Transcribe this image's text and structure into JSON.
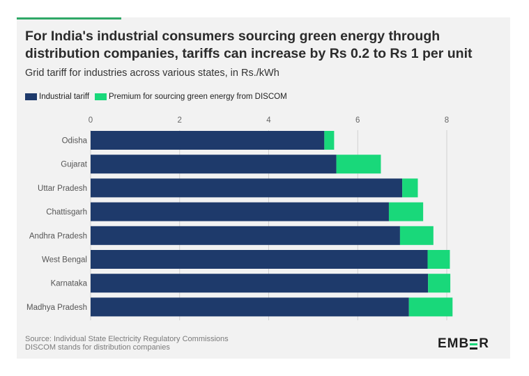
{
  "title": "For India's industrial consumers sourcing green energy through distribution companies, tariffs can increase by Rs 0.2 to Rs 1 per unit",
  "subtitle": "Grid tariff for industries across various states, in Rs./kWh",
  "legend": {
    "industrial": "Industrial tariff",
    "premium": "Premium for sourcing green energy from DISCOM"
  },
  "source": {
    "line1": "Source: Individual State Electricity Regulatory Commissions",
    "line2": "DISCOM stands for distribution companies"
  },
  "logo": {
    "pre": "EMB",
    "post": "R"
  },
  "colors": {
    "industrial": "#1e3a6b",
    "premium": "#19d87a",
    "grid": "#d0d0d0"
  },
  "chart_data": {
    "type": "bar",
    "orientation": "horizontal",
    "stacked": true,
    "title": "For India's industrial consumers sourcing green energy through distribution companies, tariffs can increase by Rs 0.2 to Rs 1 per unit",
    "subtitle": "Grid tariff for industries across various states, in Rs./kWh",
    "xlabel": "",
    "ylabel": "",
    "xlim": [
      0,
      8
    ],
    "xticks": [
      0,
      2,
      4,
      6,
      8
    ],
    "grid": true,
    "legend_position": "top-left",
    "categories": [
      "Odisha",
      "Gujarat",
      "Uttar Pradesh",
      "Chattisgarh",
      "Andhra Pradesh",
      "West Bengal",
      "Karnataka",
      "Madhya Pradesh"
    ],
    "series": [
      {
        "name": "Industrial tariff",
        "values": [
          5.25,
          5.52,
          7.0,
          6.7,
          6.95,
          7.57,
          7.58,
          7.15
        ]
      },
      {
        "name": "Premium for sourcing green energy from DISCOM",
        "values": [
          0.22,
          1.0,
          0.35,
          0.77,
          0.75,
          0.5,
          0.5,
          0.98
        ]
      }
    ]
  }
}
